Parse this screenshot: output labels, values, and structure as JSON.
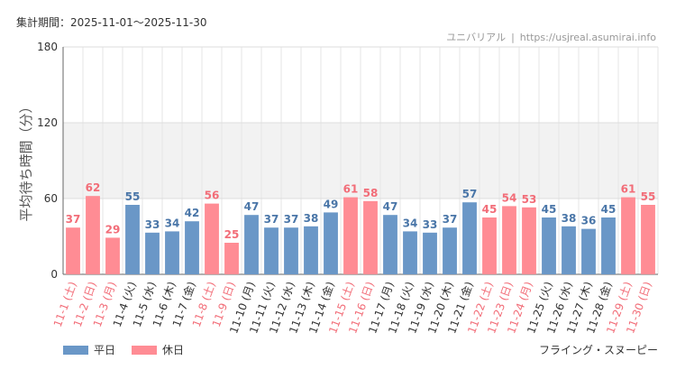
{
  "header": {
    "period": "集計期間：2025-11-01〜2025-11-30",
    "source_name": "ユニバリアル",
    "source_sep": "|",
    "source_url": "https://usjreal.asumirai.info"
  },
  "legend": {
    "weekday_label": "平日",
    "holiday_label": "休日"
  },
  "footnote": "フライング・スヌーピー",
  "colors": {
    "weekday": "#6a97c7",
    "holiday": "#ff8c94",
    "weekday_text": "#4a76a8",
    "holiday_text": "#f26d78",
    "band": "#f2f2f2",
    "grid": "#e6e6e6"
  },
  "chart_data": {
    "type": "bar",
    "ylabel": "平均待ち時間（分）",
    "ylim": [
      0,
      180
    ],
    "yticks": [
      0,
      60,
      120,
      180
    ],
    "grid": true,
    "categories": [
      "11-1 (土)",
      "11-2 (日)",
      "11-3 (月)",
      "11-4 (火)",
      "11-5 (水)",
      "11-6 (木)",
      "11-7 (金)",
      "11-8 (土)",
      "11-9 (日)",
      "11-10 (月)",
      "11-11 (火)",
      "11-12 (水)",
      "11-13 (木)",
      "11-14 (金)",
      "11-15 (土)",
      "11-16 (日)",
      "11-17 (月)",
      "11-18 (火)",
      "11-19 (水)",
      "11-20 (木)",
      "11-21 (金)",
      "11-22 (土)",
      "11-23 (日)",
      "11-24 (月)",
      "11-25 (火)",
      "11-26 (水)",
      "11-27 (木)",
      "11-28 (金)",
      "11-29 (土)",
      "11-30 (日)"
    ],
    "values": [
      37,
      62,
      29,
      55,
      33,
      34,
      42,
      56,
      25,
      47,
      37,
      37,
      38,
      49,
      61,
      58,
      47,
      34,
      33,
      37,
      57,
      45,
      54,
      53,
      45,
      38,
      36,
      45,
      61,
      55
    ],
    "day_type": [
      "holiday",
      "holiday",
      "holiday",
      "weekday",
      "weekday",
      "weekday",
      "weekday",
      "holiday",
      "holiday",
      "weekday",
      "weekday",
      "weekday",
      "weekday",
      "weekday",
      "holiday",
      "holiday",
      "weekday",
      "weekday",
      "weekday",
      "weekday",
      "weekday",
      "holiday",
      "holiday",
      "holiday",
      "weekday",
      "weekday",
      "weekday",
      "weekday",
      "holiday",
      "holiday"
    ]
  }
}
